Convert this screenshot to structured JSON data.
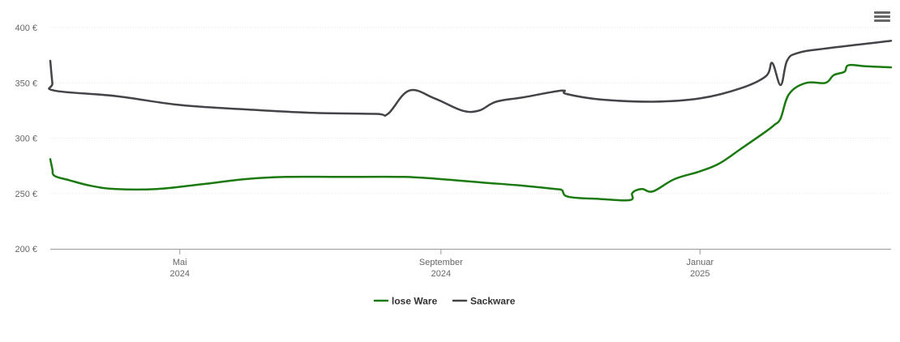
{
  "chart_data": {
    "type": "line",
    "y_axis": {
      "min": 200,
      "max": 400,
      "ticks": [
        {
          "value": 200,
          "label": "200 €"
        },
        {
          "value": 250,
          "label": "250 €"
        },
        {
          "value": 300,
          "label": "300 €"
        },
        {
          "value": 350,
          "label": "350 €"
        },
        {
          "value": 400,
          "label": "400 €"
        }
      ]
    },
    "x_axis": {
      "min": "2024-03-01",
      "max": "2025-04-01",
      "ticks": [
        {
          "date": "2024-05-01",
          "line1": "Mai",
          "line2": "2024"
        },
        {
          "date": "2024-09-01",
          "line1": "September",
          "line2": "2024"
        },
        {
          "date": "2025-01-01",
          "line1": "Januar",
          "line2": "2025"
        }
      ]
    },
    "grid": true,
    "legend_position": "bottom-center",
    "series": [
      {
        "name": "lose Ware",
        "color": "#1a7a10",
        "points": [
          [
            "2024-03-01",
            281
          ],
          [
            "2024-03-02",
            272
          ],
          [
            "2024-03-03",
            266
          ],
          [
            "2024-03-10",
            262
          ],
          [
            "2024-03-20",
            257
          ],
          [
            "2024-04-01",
            254
          ],
          [
            "2024-04-20",
            254
          ],
          [
            "2024-05-10",
            258
          ],
          [
            "2024-06-01",
            263
          ],
          [
            "2024-06-20",
            265
          ],
          [
            "2024-07-15",
            265
          ],
          [
            "2024-08-15",
            265
          ],
          [
            "2024-09-01",
            263
          ],
          [
            "2024-09-20",
            260
          ],
          [
            "2024-10-10",
            257
          ],
          [
            "2024-10-25",
            254
          ],
          [
            "2024-10-28",
            253
          ],
          [
            "2024-10-31",
            247
          ],
          [
            "2024-11-15",
            245
          ],
          [
            "2024-11-29",
            244
          ],
          [
            "2024-11-30",
            250
          ],
          [
            "2024-12-02",
            253
          ],
          [
            "2024-12-05",
            254
          ],
          [
            "2024-12-10",
            252
          ],
          [
            "2024-12-20",
            263
          ],
          [
            "2025-01-01",
            270
          ],
          [
            "2025-01-10",
            277
          ],
          [
            "2025-01-20",
            290
          ],
          [
            "2025-02-01",
            306
          ],
          [
            "2025-02-05",
            312
          ],
          [
            "2025-02-08",
            318
          ],
          [
            "2025-02-12",
            340
          ],
          [
            "2025-02-20",
            350
          ],
          [
            "2025-03-01",
            350
          ],
          [
            "2025-03-05",
            357
          ],
          [
            "2025-03-10",
            360
          ],
          [
            "2025-03-12",
            366
          ],
          [
            "2025-03-20",
            365
          ],
          [
            "2025-04-01",
            364
          ]
        ]
      },
      {
        "name": "Sackware",
        "color": "#434348",
        "points": [
          [
            "2024-03-01",
            370
          ],
          [
            "2024-03-02",
            350
          ],
          [
            "2024-03-03",
            343
          ],
          [
            "2024-04-01",
            338
          ],
          [
            "2024-05-01",
            330
          ],
          [
            "2024-06-01",
            326
          ],
          [
            "2024-07-01",
            323
          ],
          [
            "2024-08-01",
            322
          ],
          [
            "2024-08-07",
            322
          ],
          [
            "2024-08-17",
            343
          ],
          [
            "2024-08-29",
            336
          ],
          [
            "2024-09-11",
            325
          ],
          [
            "2024-09-19",
            325
          ],
          [
            "2024-09-27",
            333
          ],
          [
            "2024-10-10",
            337
          ],
          [
            "2024-10-28",
            343
          ],
          [
            "2024-10-30",
            340
          ],
          [
            "2024-11-15",
            335
          ],
          [
            "2024-12-10",
            333
          ],
          [
            "2025-01-01",
            336
          ],
          [
            "2025-01-20",
            345
          ],
          [
            "2025-02-01",
            356
          ],
          [
            "2025-02-04",
            368
          ],
          [
            "2025-02-08",
            348
          ],
          [
            "2025-02-11",
            370
          ],
          [
            "2025-02-16",
            377
          ],
          [
            "2025-03-01",
            381
          ],
          [
            "2025-04-01",
            388
          ]
        ]
      }
    ]
  },
  "toolbar": {
    "menu_icon": "hamburger-menu-icon"
  }
}
